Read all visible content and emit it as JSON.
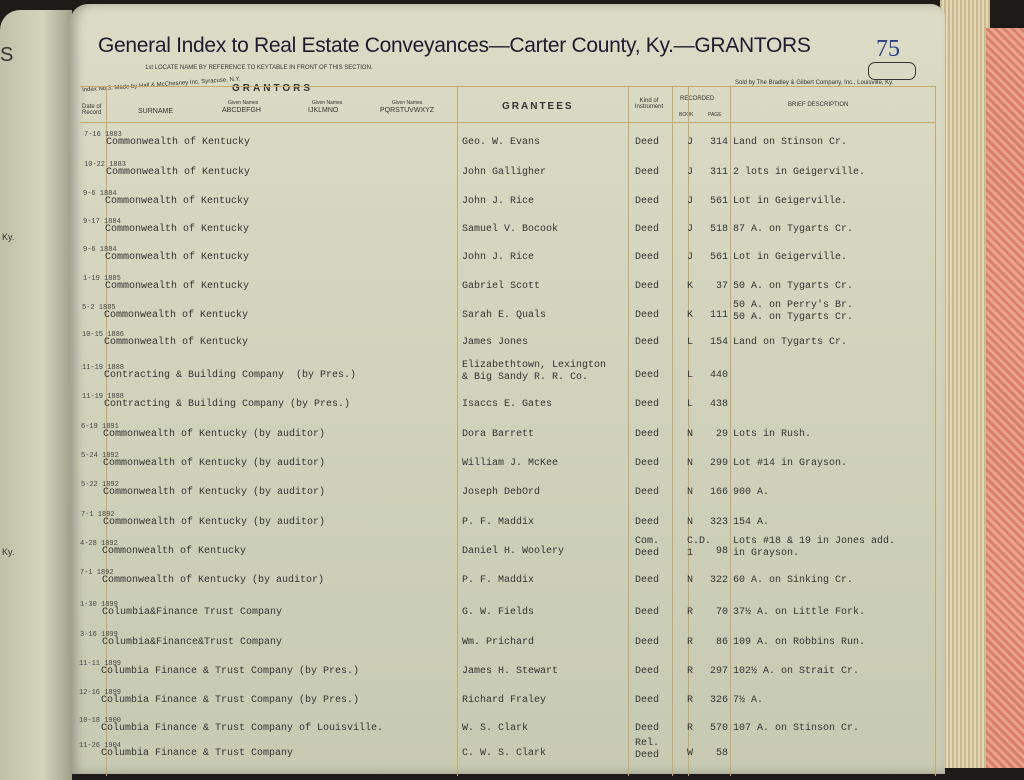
{
  "left_page": {
    "fragments": [
      "S",
      "Ky.",
      "Ky."
    ]
  },
  "header": {
    "title": "General Index to Real Estate Conveyances—Carter County, Ky.—GRANTORS",
    "page_number": "75",
    "instruction": "1st LOCATE NAME BY REFERENCE TO KEYTABLE IN FRONT OF THIS SECTION.",
    "maker": "Index No.3. Made by Hall & McChesney Inc, Syracuse, N.Y.",
    "seller": "Sold by The Bradley & Gilbert Company, Inc., Louisville, Ky."
  },
  "columns": {
    "grantors": "GRANTORS",
    "date": "Date of Record",
    "surname": "SURNAME",
    "given1_label": "Given Names",
    "given1": "ABCDEFGH",
    "given2_label": "Given Names",
    "given2": "IJKLMNO",
    "given3_label": "Given Names",
    "given3": "PQRSTUVWXYZ",
    "grantees": "GRANTEES",
    "kind": "Kind of Instrument",
    "recorded": "RECORDED",
    "book": "BOOK",
    "page": "PAGE",
    "description": "BRIEF DESCRIPTION"
  },
  "rows": [
    {
      "date": "7-16 1883",
      "grantor": "Commonwealth of Kentucky",
      "grantee": "Geo. W. Evans",
      "kind": "Deed",
      "book": "J",
      "page": "314",
      "desc": "Land on Stinson Cr."
    },
    {
      "date": "10-22 1883",
      "grantor": "Commonwealth of Kentucky",
      "grantee": "John Galligher",
      "kind": "Deed",
      "book": "J",
      "page": "311",
      "desc": "2 lots in Geigerville."
    },
    {
      "date": "9-6 1884",
      "grantor": "Commonwealth of Kentucky",
      "grantee": "John J. Rice",
      "kind": "Deed",
      "book": "J",
      "page": "561",
      "desc": "Lot in Geigerville."
    },
    {
      "date": "9-17 1884",
      "grantor": "Commonwealth of Kentucky",
      "grantee": "Samuel V. Bocook",
      "kind": "Deed",
      "book": "J",
      "page": "518",
      "desc": "87 A. on Tygarts Cr."
    },
    {
      "date": "9-6 1884",
      "grantor": "Commonwealth of Kentucky",
      "grantee": "John J. Rice",
      "kind": "Deed",
      "book": "J",
      "page": "561",
      "desc": "Lot in Geigerville."
    },
    {
      "date": "1-19 1885",
      "grantor": "Commonwealth of Kentucky",
      "grantee": "Gabriel Scott",
      "kind": "Deed",
      "book": "K",
      "page": "37",
      "desc": "50 A. on Tygarts Cr."
    },
    {
      "date": "5-2 1885",
      "grantor": "Commonwealth of Kentucky",
      "grantee": "Sarah E. Quals",
      "kind": "Deed",
      "book": "K",
      "page": "111",
      "desc": "50 A. on Perry's Br.\n50 A. on Tygarts Cr."
    },
    {
      "date": "10-15 1886",
      "grantor": "Commonwealth of Kentucky",
      "grantee": "James Jones",
      "kind": "Deed",
      "book": "L",
      "page": "154",
      "desc": "Land on Tygarts Cr."
    },
    {
      "date": "11-19 1888",
      "grantor": "Contracting & Building Company  (by Pres.)",
      "grantee": "Elizabethtown, Lexington\n& Big Sandy R. R. Co.",
      "kind": "Deed",
      "book": "L",
      "page": "440",
      "desc": ""
    },
    {
      "date": "11-19 1888",
      "grantor": "Contracting & Building Company (by Pres.)",
      "grantee": "Isaccs E. Gates",
      "kind": "Deed",
      "book": "L",
      "page": "438",
      "desc": ""
    },
    {
      "date": "6-19 1891",
      "grantor": "Commonwealth of Kentucky (by auditor)",
      "grantee": "Dora Barrett",
      "kind": "Deed",
      "book": "N",
      "page": "29",
      "desc": "Lots in Rush."
    },
    {
      "date": "5-24 1892",
      "grantor": "Commonwealth of Kentucky (by auditor)",
      "grantee": "William J. McKee",
      "kind": "Deed",
      "book": "N",
      "page": "299",
      "desc": "Lot #14 in Grayson."
    },
    {
      "date": "5-22 1892",
      "grantor": "Commonwealth of Kentucky (by auditor)",
      "grantee": "Joseph DebOrd",
      "kind": "Deed",
      "book": "N",
      "page": "166",
      "desc": "900 A."
    },
    {
      "date": "7-1 1892",
      "grantor": "Commonwealth of Kentucky (by auditor)",
      "grantee": "P. F. Maddix",
      "kind": "Deed",
      "book": "N",
      "page": "323",
      "desc": "154 A."
    },
    {
      "date": "4-28 1892",
      "grantor": "Commonwealth of Kentucky",
      "grantee": "Daniel H. Woolery",
      "kind": "Com.\nDeed",
      "book": "C.D.\n1",
      "page": "98",
      "desc": "Lots #18 & 19 in Jones add.\nin Grayson."
    },
    {
      "date": "7-1 1892",
      "grantor": "Commonwealth of Kentucky (by auditor)",
      "grantee": "P. F. Maddix",
      "kind": "Deed",
      "book": "N",
      "page": "322",
      "desc": "60 A. on Sinking Cr."
    },
    {
      "date": "1-30 1899",
      "grantor": "Columbia&Finance Trust Company",
      "grantee": "G. W. Fields",
      "kind": "Deed",
      "book": "R",
      "page": "70",
      "desc": "37½ A. on Little Fork."
    },
    {
      "date": "3-16 1899",
      "grantor": "Columbia&Finance&Trust Company",
      "grantee": "Wm. Prichard",
      "kind": "Deed",
      "book": "R",
      "page": "86",
      "desc": "109 A. on Robbins Run."
    },
    {
      "date": "11-11 1899",
      "grantor": "Columbia Finance & Trust Company (by Pres.)",
      "grantee": "James H. Stewart",
      "kind": "Deed",
      "book": "R",
      "page": "297",
      "desc": "102½ A. on Strait Cr."
    },
    {
      "date": "12-16 1899",
      "grantor": "Columbia Finance & Trust Company (by Pres.)",
      "grantee": "Richard Fraley",
      "kind": "Deed",
      "book": "R",
      "page": "326",
      "desc": "7½ A."
    },
    {
      "date": "10-18 1900",
      "grantor": "Columbia Finance & Trust Company of Louisville.",
      "grantee": "W. S. Clark",
      "kind": "Deed",
      "book": "R",
      "page": "570",
      "desc": "107 A. on Stinson Cr."
    },
    {
      "date": "11-26 1904",
      "grantor": "Columbia Finance & Trust Company",
      "grantee": "C. W. S. Clark",
      "kind": "Rel.\nDeed",
      "book": "W",
      "page": "58",
      "desc": ""
    }
  ]
}
